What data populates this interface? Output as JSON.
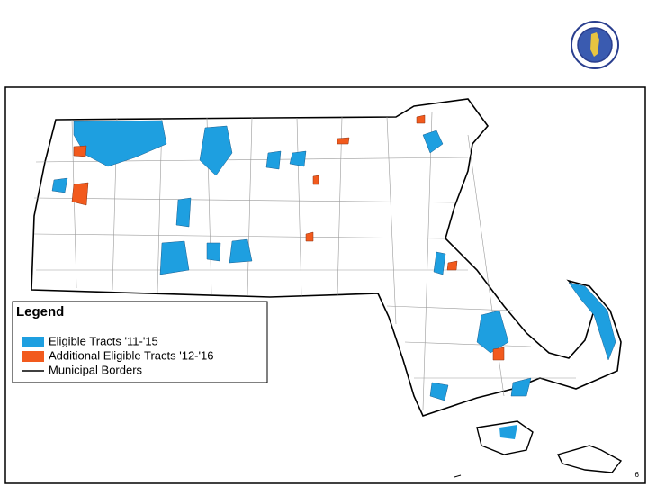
{
  "legend": {
    "title": "Legend",
    "items": [
      {
        "label": "Eligible Tracts '11-'15",
        "color": "#1e9fe0",
        "symbol": "box"
      },
      {
        "label": "Additional Eligible Tracts '12-'16",
        "color": "#f25a1d",
        "symbol": "box"
      },
      {
        "label": "Municipal Borders",
        "color": "#000000",
        "symbol": "line"
      }
    ]
  },
  "page_number": "6"
}
